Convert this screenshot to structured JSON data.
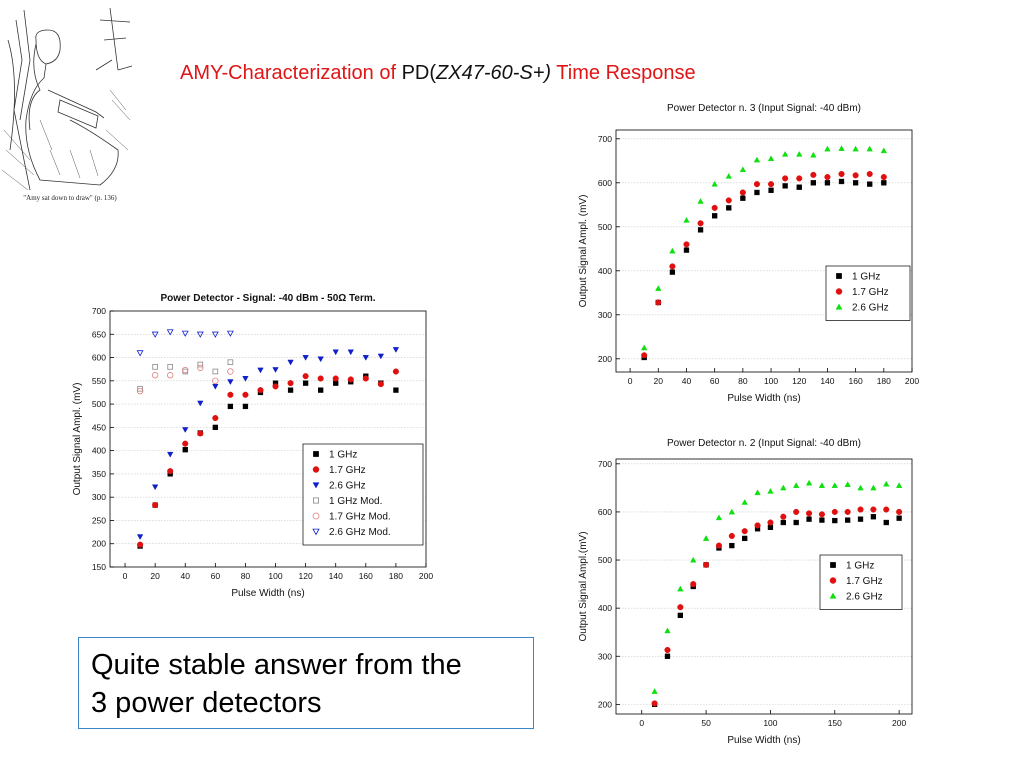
{
  "slide": {
    "title_prefix": "AMY-Characterization of ",
    "title_pd": "PD(",
    "title_part": "ZX47-60-S+)",
    "title_suffix": " Time Response",
    "caption_line1": "Quite stable answer from the",
    "caption_line2": "3 power detectors",
    "illustration_caption": "\"Amy sat down to draw\" (p. 136)",
    "colors": {
      "title": "#e01515",
      "black": "#000000",
      "red": "#e01010",
      "blue": "#1020c8",
      "green": "#10e010"
    }
  },
  "chart_data": [
    {
      "type": "scatter",
      "title": "Power Detector - Signal: -40 dBm - 50Ω Term.",
      "xlabel": "Pulse Width (ns)",
      "ylabel": "Output Signal Ampl. (mV)",
      "xlim": [
        -10,
        200
      ],
      "ylim": [
        150,
        700
      ],
      "xticks": [
        0,
        20,
        40,
        60,
        80,
        100,
        120,
        140,
        160,
        180,
        200
      ],
      "yticks": [
        150,
        200,
        250,
        300,
        350,
        400,
        450,
        500,
        550,
        600,
        650,
        700
      ],
      "grid": true,
      "legend_position": "bottom-right",
      "series": [
        {
          "name": "1   GHz",
          "marker": "square",
          "color": "#000000",
          "x": [
            10,
            20,
            30,
            40,
            50,
            60,
            70,
            80,
            90,
            100,
            110,
            120,
            130,
            140,
            150,
            160,
            170,
            180
          ],
          "y": [
            195,
            283,
            350,
            402,
            438,
            450,
            495,
            495,
            525,
            545,
            530,
            545,
            530,
            545,
            548,
            560,
            545,
            530
          ]
        },
        {
          "name": "1.7 GHz",
          "marker": "circle",
          "color": "#e01010",
          "x": [
            10,
            20,
            30,
            40,
            50,
            60,
            70,
            80,
            90,
            100,
            110,
            120,
            130,
            140,
            150,
            160,
            170,
            180
          ],
          "y": [
            198,
            283,
            356,
            415,
            437,
            470,
            520,
            520,
            530,
            538,
            545,
            560,
            555,
            555,
            553,
            555,
            543,
            570
          ]
        },
        {
          "name": "2.6 GHz",
          "marker": "triangle-down",
          "color": "#1020c8",
          "x": [
            10,
            20,
            30,
            40,
            50,
            60,
            70,
            80,
            90,
            100,
            110,
            120,
            130,
            140,
            150,
            160,
            170,
            180
          ],
          "y": [
            215,
            322,
            392,
            445,
            502,
            538,
            548,
            555,
            573,
            574,
            590,
            600,
            597,
            612,
            612,
            600,
            603,
            617
          ]
        },
        {
          "name": "1   GHz Mod.",
          "marker": "square-open",
          "color": "#888888",
          "x": [
            10,
            20,
            30,
            40,
            50,
            60,
            70
          ],
          "y": [
            533,
            580,
            580,
            570,
            585,
            570,
            590
          ]
        },
        {
          "name": "1.7 GHz Mod.",
          "marker": "circle-open",
          "color": "#e08080",
          "x": [
            10,
            20,
            30,
            40,
            50,
            60,
            70
          ],
          "y": [
            528,
            562,
            562,
            573,
            578,
            550,
            570
          ]
        },
        {
          "name": "2.6 GHz Mod.",
          "marker": "triangle-down-open",
          "color": "#1020c8",
          "x": [
            10,
            20,
            30,
            40,
            50,
            60,
            70
          ],
          "y": [
            610,
            650,
            655,
            652,
            650,
            650,
            652
          ]
        }
      ]
    },
    {
      "type": "scatter",
      "title": "Power Detector n. 3 (Input Signal: -40 dBm)",
      "xlabel": "Pulse Width (ns)",
      "ylabel": "Output Signal Ampl. (mV)",
      "xlim": [
        -10,
        200
      ],
      "ylim": [
        170,
        720
      ],
      "xticks": [
        0,
        20,
        40,
        60,
        80,
        100,
        120,
        140,
        160,
        180,
        200
      ],
      "yticks": [
        200,
        300,
        400,
        500,
        600,
        700
      ],
      "grid": true,
      "legend_position": "right",
      "series": [
        {
          "name": "1    GHz",
          "marker": "square",
          "color": "#000000",
          "x": [
            10,
            20,
            30,
            40,
            50,
            60,
            70,
            80,
            90,
            100,
            110,
            120,
            130,
            140,
            150,
            160,
            170,
            180
          ],
          "y": [
            203,
            328,
            397,
            447,
            493,
            525,
            543,
            565,
            578,
            583,
            593,
            590,
            600,
            600,
            603,
            600,
            597,
            600
          ]
        },
        {
          "name": "1.7 GHz",
          "marker": "circle",
          "color": "#e01010",
          "x": [
            10,
            20,
            30,
            40,
            50,
            60,
            70,
            80,
            90,
            100,
            110,
            120,
            130,
            140,
            150,
            160,
            170,
            180
          ],
          "y": [
            208,
            328,
            410,
            460,
            508,
            543,
            560,
            578,
            597,
            597,
            610,
            610,
            618,
            613,
            620,
            617,
            620,
            613
          ]
        },
        {
          "name": "2.6 GHz",
          "marker": "triangle",
          "color": "#10e010",
          "x": [
            10,
            20,
            30,
            40,
            50,
            60,
            70,
            80,
            90,
            100,
            110,
            120,
            130,
            140,
            150,
            160,
            170,
            180
          ],
          "y": [
            225,
            360,
            445,
            515,
            558,
            597,
            615,
            630,
            652,
            655,
            665,
            665,
            663,
            677,
            678,
            677,
            677,
            673
          ]
        }
      ]
    },
    {
      "type": "scatter",
      "title": "Power Detector n. 2 (Input Signal: -40 dBm)",
      "xlabel": "Pulse Width (ns)",
      "ylabel": "Output Signal Ampl.(mV)",
      "xlim": [
        -20,
        210
      ],
      "ylim": [
        180,
        710
      ],
      "xticks": [
        0,
        50,
        100,
        150,
        200
      ],
      "yticks": [
        200,
        300,
        400,
        500,
        600,
        700
      ],
      "grid": true,
      "legend_position": "right",
      "series": [
        {
          "name": "1    GHz",
          "marker": "square",
          "color": "#000000",
          "x": [
            10,
            20,
            30,
            40,
            50,
            60,
            70,
            80,
            90,
            100,
            110,
            120,
            130,
            140,
            150,
            160,
            170,
            180,
            190,
            200
          ],
          "y": [
            200,
            300,
            385,
            445,
            490,
            525,
            530,
            545,
            565,
            568,
            578,
            578,
            585,
            583,
            582,
            583,
            585,
            590,
            578,
            587
          ]
        },
        {
          "name": "1.7 GHz",
          "marker": "circle",
          "color": "#e01010",
          "x": [
            10,
            20,
            30,
            40,
            50,
            60,
            70,
            80,
            90,
            100,
            110,
            120,
            130,
            140,
            150,
            160,
            170,
            180,
            190,
            200
          ],
          "y": [
            202,
            313,
            402,
            450,
            490,
            530,
            550,
            560,
            572,
            578,
            590,
            600,
            597,
            595,
            600,
            600,
            605,
            605,
            605,
            600
          ]
        },
        {
          "name": "2.6 GHz",
          "marker": "triangle",
          "color": "#10e010",
          "x": [
            10,
            20,
            30,
            40,
            50,
            60,
            70,
            80,
            90,
            100,
            110,
            120,
            130,
            140,
            150,
            160,
            170,
            180,
            190,
            200
          ],
          "y": [
            227,
            353,
            440,
            500,
            545,
            588,
            600,
            620,
            640,
            643,
            650,
            655,
            660,
            655,
            655,
            657,
            650,
            650,
            658,
            655
          ]
        }
      ]
    }
  ]
}
